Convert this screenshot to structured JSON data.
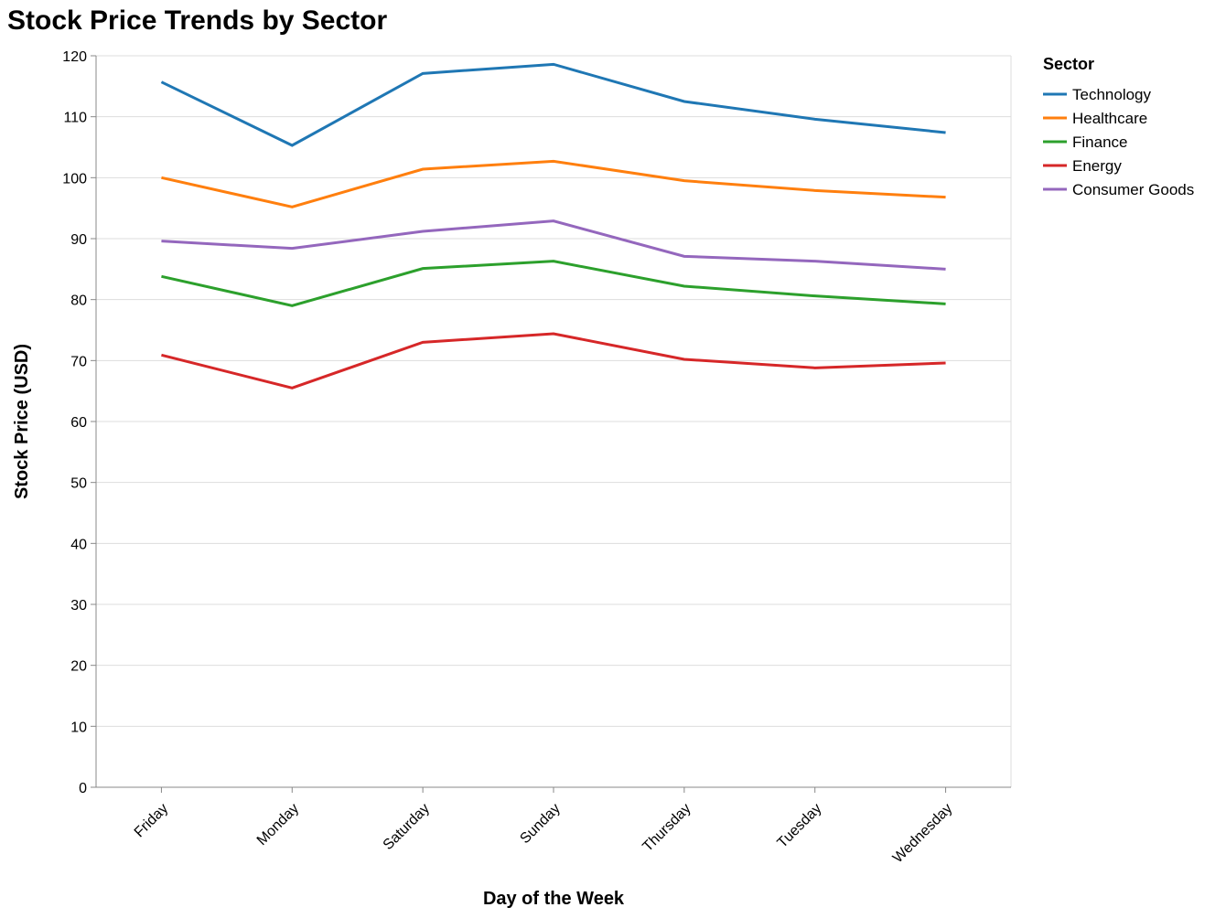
{
  "chart_data": {
    "type": "line",
    "title": "Stock Price Trends by Sector",
    "xlabel": "Day of the Week",
    "ylabel": "Stock Price (USD)",
    "categories": [
      "Friday",
      "Monday",
      "Saturday",
      "Sunday",
      "Thursday",
      "Tuesday",
      "Wednesday"
    ],
    "ylim": [
      0,
      120
    ],
    "yticks": [
      0,
      10,
      20,
      30,
      40,
      50,
      60,
      70,
      80,
      90,
      100,
      110,
      120
    ],
    "grid": true,
    "legend": {
      "title": "Sector",
      "placement": "right"
    },
    "series": [
      {
        "name": "Technology",
        "color": "#1f77b4",
        "values": [
          115.7,
          105.3,
          117.1,
          118.6,
          112.5,
          109.6,
          107.4
        ]
      },
      {
        "name": "Healthcare",
        "color": "#ff7f0e",
        "values": [
          100.0,
          95.2,
          101.4,
          102.7,
          99.5,
          97.9,
          96.8
        ]
      },
      {
        "name": "Finance",
        "color": "#2ca02c",
        "values": [
          83.8,
          79.0,
          85.1,
          86.3,
          82.2,
          80.6,
          79.3
        ]
      },
      {
        "name": "Energy",
        "color": "#d62728",
        "values": [
          70.9,
          65.5,
          73.0,
          74.4,
          70.2,
          68.8,
          69.6
        ]
      },
      {
        "name": "Consumer Goods",
        "color": "#9467bd",
        "values": [
          89.6,
          88.4,
          91.2,
          92.9,
          87.1,
          86.3,
          85.0
        ]
      }
    ]
  }
}
